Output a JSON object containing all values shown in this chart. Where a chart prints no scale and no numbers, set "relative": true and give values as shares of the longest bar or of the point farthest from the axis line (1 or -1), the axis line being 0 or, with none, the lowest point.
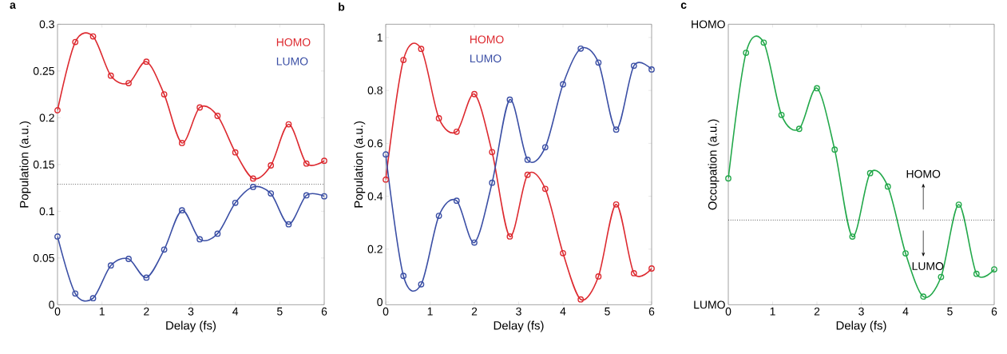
{
  "chart_data": [
    {
      "type": "line",
      "title": "a",
      "xlabel": "Delay (fs)",
      "ylabel": "Population (a.u.)",
      "xlim": [
        0,
        6
      ],
      "ylim": [
        0,
        0.3
      ],
      "xticks": [
        0,
        1,
        2,
        3,
        4,
        5,
        6
      ],
      "yticks": [
        0,
        0.05,
        0.1,
        0.15,
        0.2,
        0.25,
        0.3
      ],
      "marker": "circle",
      "legend": "top right",
      "x": [
        0,
        0.4,
        0.8,
        1.2,
        1.6,
        2.0,
        2.4,
        2.8,
        3.2,
        3.6,
        4.0,
        4.4,
        4.8,
        5.2,
        5.6,
        6.0
      ],
      "series": [
        {
          "name": "HOMO",
          "color": "#dd2a30",
          "values": [
            0.208,
            0.281,
            0.287,
            0.245,
            0.237,
            0.26,
            0.225,
            0.173,
            0.211,
            0.202,
            0.163,
            0.135,
            0.149,
            0.193,
            0.151,
            0.154
          ]
        },
        {
          "name": "LUMO",
          "color": "#3b4fa5",
          "values": [
            0.073,
            0.012,
            0.007,
            0.042,
            0.049,
            0.029,
            0.059,
            0.101,
            0.07,
            0.076,
            0.109,
            0.126,
            0.119,
            0.086,
            0.117,
            0.116
          ]
        }
      ],
      "ref_lines": [
        {
          "axis": "y",
          "value": 0.129,
          "line_style": "dotted"
        }
      ]
    },
    {
      "type": "line",
      "title": "b",
      "xlabel": "Delay (fs)",
      "ylabel": "Population (a.u.)",
      "xlim": [
        0,
        6
      ],
      "ylim": [
        -0.01,
        1.05
      ],
      "xticks": [
        0,
        1,
        2,
        3,
        4,
        5,
        6
      ],
      "yticks": [
        0,
        0.2,
        0.4,
        0.6,
        0.8,
        1
      ],
      "marker": "circle",
      "legend": "top",
      "x": [
        0,
        0.4,
        0.8,
        1.2,
        1.6,
        2.0,
        2.4,
        2.8,
        3.2,
        3.6,
        4.0,
        4.4,
        4.8,
        5.2,
        5.6,
        6.0
      ],
      "series": [
        {
          "name": "HOMO",
          "color": "#dd2a30",
          "values": [
            0.463,
            0.915,
            0.957,
            0.695,
            0.644,
            0.786,
            0.567,
            0.248,
            0.481,
            0.428,
            0.185,
            0.01,
            0.097,
            0.369,
            0.109,
            0.127
          ]
        },
        {
          "name": "LUMO",
          "color": "#3b4fa5",
          "values": [
            0.558,
            0.099,
            0.067,
            0.326,
            0.383,
            0.225,
            0.451,
            0.765,
            0.538,
            0.585,
            0.823,
            0.958,
            0.905,
            0.652,
            0.893,
            0.879
          ]
        }
      ]
    },
    {
      "type": "line",
      "title": "c",
      "xlabel": "Delay (fs)",
      "ylabel": "Occupation (a.u.)",
      "xlim": [
        0,
        6
      ],
      "xticks": [
        0,
        1,
        2,
        3,
        4,
        5,
        6
      ],
      "relative": true,
      "marker": "circle",
      "x": [
        0,
        0.4,
        0.8,
        1.2,
        1.6,
        2.0,
        2.4,
        2.8,
        3.2,
        3.6,
        4.0,
        4.4,
        4.8,
        5.2,
        5.6,
        6.0
      ],
      "series": [
        {
          "color": "#22a84a",
          "values": [
            0.482,
            0.961,
            1,
            0.724,
            0.671,
            0.826,
            0.592,
            0.26,
            0.502,
            0.451,
            0.196,
            0.031,
            0.106,
            0.382,
            0.118,
            0.135
          ]
        }
      ],
      "ref_lines": [
        {
          "axis": "y",
          "value": 0.323,
          "line_style": "dotted"
        }
      ],
      "annotations": [
        "HOMO",
        "LUMO",
        "HOMO",
        "LUMO"
      ]
    }
  ]
}
